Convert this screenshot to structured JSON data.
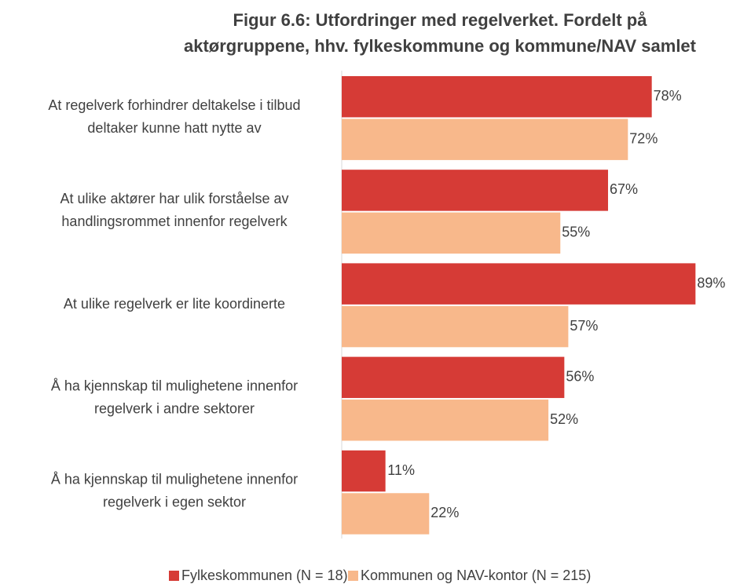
{
  "chart_data": {
    "type": "hbar",
    "title": [
      "Figur 6.6: Utfordringer med regelverket. Fordelt på",
      "aktørgruppene, hhv. fylkeskommune og kommune/NAV samlet"
    ],
    "categories": [
      [
        "At regelverk forhindrer deltakelse i tilbud",
        "deltaker kunne hatt nytte av"
      ],
      [
        "At ulike aktører har ulik forståelse av",
        "handlingsrommet innenfor regelverk"
      ],
      [
        "At ulike regelverk er lite koordinerte"
      ],
      [
        "Å ha kjennskap til mulighetene innenfor",
        "regelverk i andre sektorer"
      ],
      [
        "Å ha kjennskap til mulighetene innenfor",
        "regelverk i egen sektor"
      ]
    ],
    "series": [
      {
        "name": "Fylkeskommunen (N = 18)",
        "color": "#d63b36",
        "values": [
          78,
          67,
          89,
          56,
          11
        ],
        "value_labels": [
          "78%",
          "67%",
          "89%",
          "56%",
          "11%"
        ]
      },
      {
        "name": "Kommunen og NAV-kontor (N = 215)",
        "color": "#f8b88b",
        "values": [
          72,
          55,
          57,
          52,
          22
        ],
        "value_labels": [
          "72%",
          "55%",
          "57%",
          "52%",
          "22%"
        ]
      }
    ],
    "xlim": [
      0,
      100
    ],
    "legend": "bottom"
  }
}
